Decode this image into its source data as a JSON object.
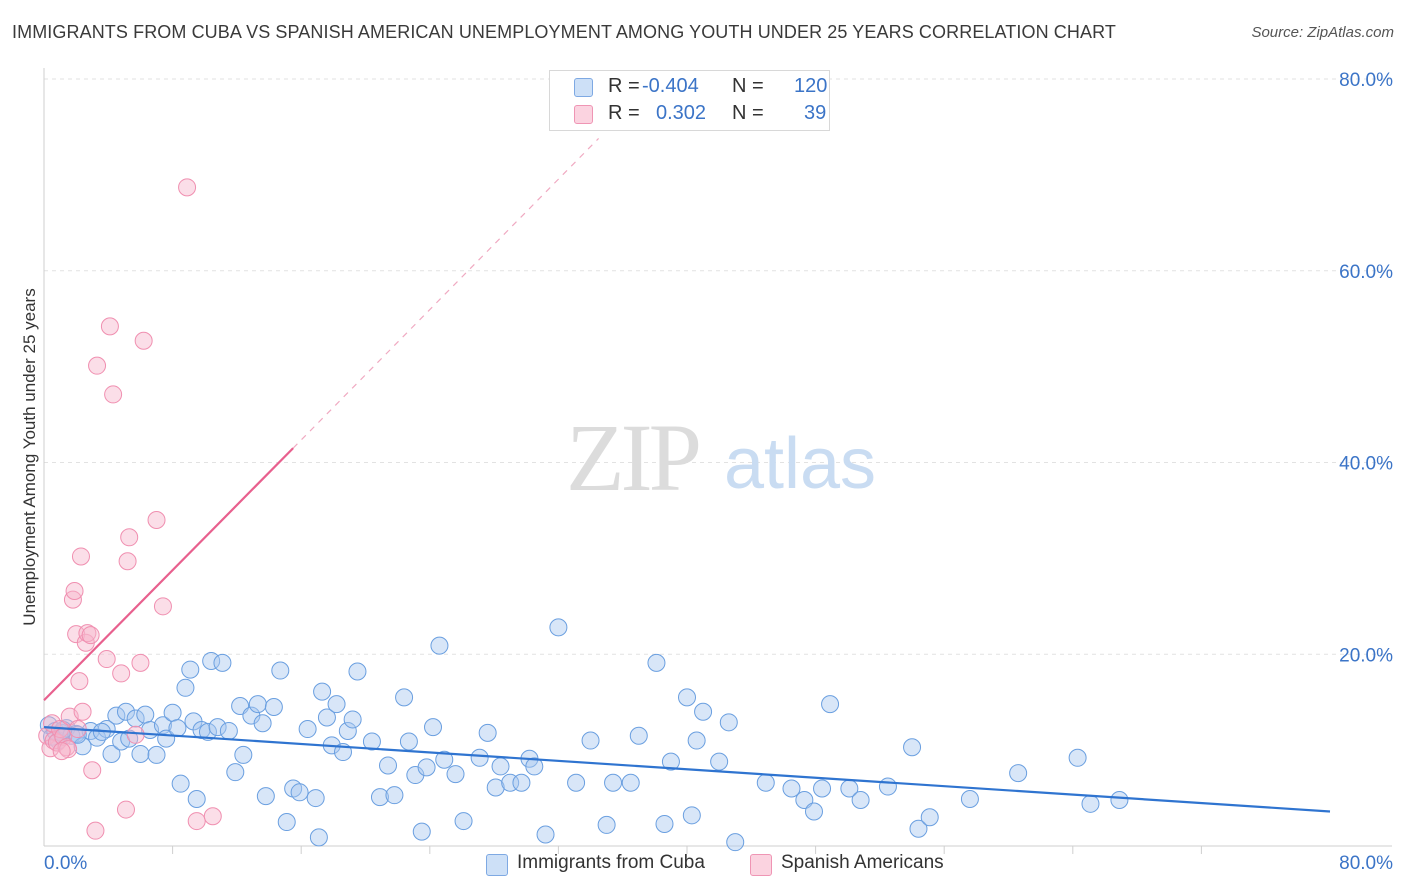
{
  "title": "IMMIGRANTS FROM CUBA VS SPANISH AMERICAN UNEMPLOYMENT AMONG YOUTH UNDER 25 YEARS CORRELATION CHART",
  "source": "Source: ZipAtlas.com",
  "watermark": {
    "zip": "ZIP",
    "atlas": "atlas"
  },
  "legend": {
    "r_label": "R =",
    "n_label": "N =",
    "rows": [
      {
        "r": "-0.404",
        "n": "120",
        "color": "#a9c8f0"
      },
      {
        "r": "0.302",
        "n": "39",
        "color": "#f7b6cc"
      }
    ]
  },
  "bottom_legend": [
    {
      "label": "Immigrants from Cuba",
      "color": "#a9c8f0"
    },
    {
      "label": "Spanish Americans",
      "color": "#f7b6cc"
    }
  ],
  "chart_data": {
    "type": "scatter",
    "title": "IMMIGRANTS FROM CUBA VS SPANISH AMERICAN UNEMPLOYMENT AMONG YOUTH UNDER 25 YEARS CORRELATION CHART",
    "xlabel": "",
    "ylabel": "Unemployment Among Youth under 25 years",
    "xlim": [
      0,
      80
    ],
    "ylim": [
      0,
      80
    ],
    "x_tick_labels": [
      "0.0%",
      "80.0%"
    ],
    "y_ticks": [
      20,
      40,
      60,
      80
    ],
    "y_tick_labels": [
      "20.0%",
      "40.0%",
      "60.0%",
      "80.0%"
    ],
    "grid": true,
    "series": [
      {
        "name": "Immigrants from Cuba",
        "color": "#6a9fe0",
        "trend": {
          "x": [
            0,
            80
          ],
          "y": [
            12.4,
            3.6
          ],
          "color": "#2f74d0",
          "dash_extension": false
        },
        "points": [
          [
            0.3,
            12.6
          ],
          [
            0.5,
            11.4
          ],
          [
            0.7,
            12.0
          ],
          [
            0.9,
            11.0
          ],
          [
            1.1,
            11.8
          ],
          [
            1.4,
            12.3
          ],
          [
            1.7,
            11.5
          ],
          [
            2.0,
            11.7
          ],
          [
            2.4,
            10.4
          ],
          [
            2.9,
            12.0
          ],
          [
            3.3,
            11.3
          ],
          [
            3.9,
            12.2
          ],
          [
            4.2,
            9.6
          ],
          [
            4.5,
            13.6
          ],
          [
            4.8,
            10.9
          ],
          [
            5.1,
            14.0
          ],
          [
            5.3,
            11.2
          ],
          [
            5.7,
            13.3
          ],
          [
            6.0,
            9.6
          ],
          [
            6.3,
            13.7
          ],
          [
            6.6,
            12.1
          ],
          [
            7.0,
            9.5
          ],
          [
            7.4,
            12.6
          ],
          [
            7.6,
            11.2
          ],
          [
            8.0,
            13.9
          ],
          [
            8.3,
            12.3
          ],
          [
            8.5,
            6.5
          ],
          [
            8.8,
            16.5
          ],
          [
            9.1,
            18.4
          ],
          [
            9.3,
            13.0
          ],
          [
            9.5,
            4.9
          ],
          [
            9.8,
            12.1
          ],
          [
            10.2,
            11.9
          ],
          [
            10.4,
            19.3
          ],
          [
            10.8,
            12.4
          ],
          [
            11.1,
            19.1
          ],
          [
            11.5,
            12.0
          ],
          [
            11.9,
            7.7
          ],
          [
            12.2,
            14.6
          ],
          [
            12.4,
            9.5
          ],
          [
            12.9,
            13.6
          ],
          [
            13.3,
            14.8
          ],
          [
            13.6,
            12.8
          ],
          [
            13.8,
            5.2
          ],
          [
            14.3,
            14.5
          ],
          [
            14.7,
            18.3
          ],
          [
            15.1,
            2.5
          ],
          [
            15.5,
            6.0
          ],
          [
            15.9,
            5.6
          ],
          [
            16.4,
            12.2
          ],
          [
            16.9,
            5.0
          ],
          [
            17.1,
            0.9
          ],
          [
            17.3,
            16.1
          ],
          [
            17.6,
            13.4
          ],
          [
            17.9,
            10.5
          ],
          [
            18.2,
            14.8
          ],
          [
            18.6,
            9.8
          ],
          [
            18.9,
            12.0
          ],
          [
            19.2,
            13.2
          ],
          [
            19.5,
            18.2
          ],
          [
            20.4,
            10.9
          ],
          [
            20.9,
            5.1
          ],
          [
            21.4,
            8.4
          ],
          [
            21.8,
            5.3
          ],
          [
            22.4,
            15.5
          ],
          [
            22.7,
            10.9
          ],
          [
            23.1,
            7.4
          ],
          [
            23.5,
            1.5
          ],
          [
            23.8,
            8.2
          ],
          [
            24.2,
            12.4
          ],
          [
            24.6,
            20.9
          ],
          [
            24.9,
            9.0
          ],
          [
            25.6,
            7.5
          ],
          [
            26.1,
            2.6
          ],
          [
            27.1,
            9.2
          ],
          [
            27.6,
            11.8
          ],
          [
            28.1,
            6.1
          ],
          [
            28.4,
            8.3
          ],
          [
            29.0,
            6.6
          ],
          [
            29.7,
            6.6
          ],
          [
            30.2,
            9.1
          ],
          [
            30.5,
            8.3
          ],
          [
            31.2,
            1.2
          ],
          [
            32.0,
            22.8
          ],
          [
            33.1,
            6.6
          ],
          [
            34.0,
            11.0
          ],
          [
            35.0,
            2.2
          ],
          [
            35.4,
            6.6
          ],
          [
            36.5,
            6.6
          ],
          [
            37.0,
            11.5
          ],
          [
            38.1,
            19.1
          ],
          [
            38.6,
            2.3
          ],
          [
            39.0,
            8.8
          ],
          [
            40.0,
            15.5
          ],
          [
            40.3,
            3.2
          ],
          [
            40.6,
            11.0
          ],
          [
            41.0,
            14.0
          ],
          [
            42.0,
            8.8
          ],
          [
            42.6,
            12.9
          ],
          [
            43.0,
            0.4
          ],
          [
            44.9,
            6.6
          ],
          [
            46.5,
            6.0
          ],
          [
            47.3,
            4.8
          ],
          [
            47.9,
            3.6
          ],
          [
            48.4,
            6.0
          ],
          [
            48.9,
            14.8
          ],
          [
            50.1,
            6.0
          ],
          [
            50.8,
            4.8
          ],
          [
            52.5,
            6.2
          ],
          [
            54.0,
            10.3
          ],
          [
            54.4,
            1.8
          ],
          [
            55.1,
            3.0
          ],
          [
            57.6,
            4.9
          ],
          [
            60.6,
            7.6
          ],
          [
            64.3,
            9.2
          ],
          [
            65.1,
            4.4
          ],
          [
            66.9,
            4.8
          ],
          [
            2.1,
            11.6
          ],
          [
            3.6,
            11.9
          ],
          [
            1.2,
            12.1
          ]
        ]
      },
      {
        "name": "Spanish Americans",
        "color": "#f08fb0",
        "trend": {
          "x": [
            0,
            15.5
          ],
          "y": [
            15.2,
            41.5
          ],
          "color": "#e8608e",
          "dash_extension": true,
          "dash_x": [
            15.5,
            34.5
          ],
          "dash_y": [
            41.5,
            73.8
          ]
        },
        "points": [
          [
            0.2,
            11.5
          ],
          [
            0.4,
            10.2
          ],
          [
            0.5,
            12.8
          ],
          [
            0.6,
            11.0
          ],
          [
            0.8,
            10.8
          ],
          [
            1.0,
            12.2
          ],
          [
            1.2,
            11.4
          ],
          [
            1.4,
            10.3
          ],
          [
            1.5,
            10.1
          ],
          [
            1.6,
            13.5
          ],
          [
            1.8,
            25.7
          ],
          [
            1.9,
            26.6
          ],
          [
            2.0,
            22.1
          ],
          [
            2.1,
            12.2
          ],
          [
            2.2,
            17.2
          ],
          [
            2.3,
            30.2
          ],
          [
            2.4,
            14.0
          ],
          [
            2.6,
            21.2
          ],
          [
            2.7,
            22.2
          ],
          [
            2.9,
            22.0
          ],
          [
            3.0,
            7.9
          ],
          [
            3.2,
            1.6
          ],
          [
            3.3,
            50.1
          ],
          [
            3.9,
            19.5
          ],
          [
            4.1,
            54.2
          ],
          [
            4.3,
            47.1
          ],
          [
            4.8,
            18.0
          ],
          [
            5.1,
            3.8
          ],
          [
            5.2,
            29.7
          ],
          [
            5.3,
            32.2
          ],
          [
            5.7,
            11.6
          ],
          [
            6.0,
            19.1
          ],
          [
            6.2,
            52.7
          ],
          [
            7.0,
            34.0
          ],
          [
            7.4,
            25.0
          ],
          [
            8.9,
            68.7
          ],
          [
            9.5,
            2.6
          ],
          [
            10.5,
            3.1
          ],
          [
            1.1,
            9.9
          ]
        ]
      }
    ]
  }
}
